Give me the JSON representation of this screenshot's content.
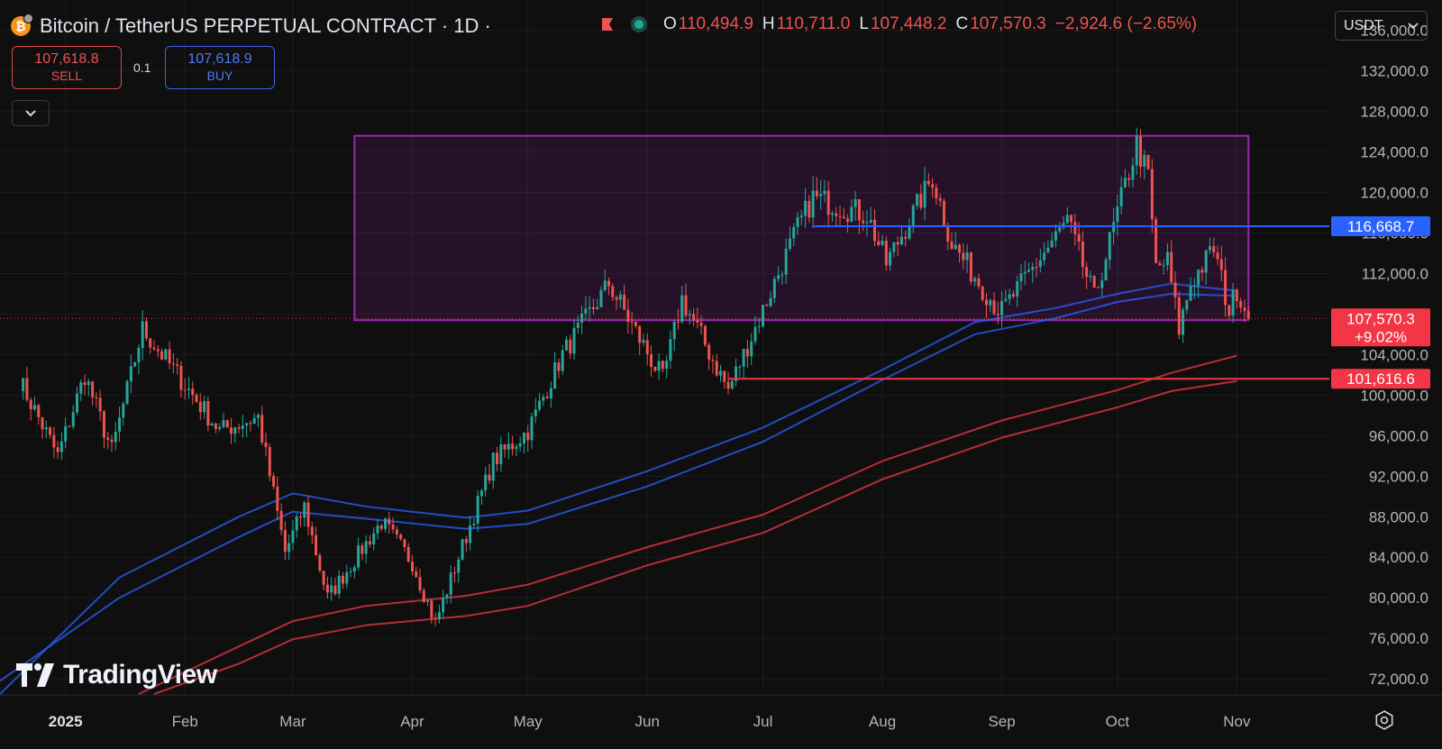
{
  "header": {
    "title": "Bitcoin / TetherUS PERPETUAL CONTRACT · 1D ·",
    "ohlc": [
      {
        "key": "O",
        "value": "110,494.9"
      },
      {
        "key": "H",
        "value": "110,711.0"
      },
      {
        "key": "L",
        "value": "107,448.2"
      },
      {
        "key": "C",
        "value": "107,570.3"
      }
    ],
    "change": "−2,924.6 (−2.65%)"
  },
  "trade": {
    "sell_price": "107,618.8",
    "sell_label": "SELL",
    "quantity": "0.1",
    "buy_price": "107,618.9",
    "buy_label": "BUY"
  },
  "currency_select": {
    "value": "USDT"
  },
  "logo_text": "TradingView",
  "colors": {
    "background": "#0f0f0f",
    "up": "#26a69a",
    "down": "#ef5350",
    "range_box": "#9c27b0",
    "blue_line": "#2962ff",
    "red_line": "#f23645"
  },
  "chart_data": {
    "type": "candlestick",
    "y_ticks": [
      "136,000.0",
      "132,000.0",
      "128,000.0",
      "124,000.0",
      "120,000.0",
      "116,000.0",
      "112,000.0",
      "108,000.0",
      "104,000.0",
      "100,000.0",
      "96,000.0",
      "92,000.0",
      "88,000.0",
      "84,000.0",
      "80,000.0",
      "76,000.0",
      "72,000.0"
    ],
    "x_ticks": [
      "2025",
      "Feb",
      "Mar",
      "Apr",
      "May",
      "Jun",
      "Jul",
      "Aug",
      "Sep",
      "Oct",
      "Nov"
    ],
    "ylim": [
      70500,
      139000
    ],
    "price_labels": [
      {
        "text": "116,668.7",
        "price": 116668.7,
        "color": "#2962ff"
      },
      {
        "text": "107,570.3",
        "sub": "+9.02%",
        "price": 107570.3,
        "color": "#f23645"
      },
      {
        "text": "101,616.6",
        "price": 101616.6,
        "color": "#f23645"
      }
    ],
    "range_box": {
      "from": "2025-03-17",
      "to": "2025-11-04",
      "top": 125600,
      "bottom": 107400
    },
    "horizontal_levels": [
      {
        "price": 116668.7,
        "from": "2025-07-14",
        "to": "2025-11-04",
        "color": "#2962ff"
      },
      {
        "price": 101616.6,
        "from": "2025-06-22",
        "to": "2025-11-04",
        "color": "#f23645"
      }
    ],
    "moving_averages": [
      {
        "color": "#2962ff",
        "points": [
          [
            "2024-12-15",
            70500
          ],
          [
            "2025-01-15",
            82000
          ],
          [
            "2025-02-15",
            88000
          ],
          [
            "2025-03-01",
            90300
          ],
          [
            "2025-03-20",
            89000
          ],
          [
            "2025-04-15",
            87900
          ],
          [
            "2025-05-01",
            88600
          ],
          [
            "2025-06-01",
            92500
          ],
          [
            "2025-07-01",
            96800
          ],
          [
            "2025-08-01",
            102500
          ],
          [
            "2025-08-25",
            107200
          ],
          [
            "2025-09-15",
            108600
          ],
          [
            "2025-10-01",
            110000
          ],
          [
            "2025-10-15",
            111000
          ],
          [
            "2025-11-01",
            110300
          ]
        ]
      },
      {
        "color": "#2962ff",
        "points": [
          [
            "2024-12-15",
            71800
          ],
          [
            "2025-01-15",
            80000
          ],
          [
            "2025-02-15",
            86000
          ],
          [
            "2025-03-01",
            88500
          ],
          [
            "2025-03-20",
            87800
          ],
          [
            "2025-04-15",
            86800
          ],
          [
            "2025-05-01",
            87300
          ],
          [
            "2025-06-01",
            91000
          ],
          [
            "2025-07-01",
            95400
          ],
          [
            "2025-08-01",
            101500
          ],
          [
            "2025-08-25",
            106000
          ],
          [
            "2025-09-15",
            107600
          ],
          [
            "2025-10-01",
            109200
          ],
          [
            "2025-10-15",
            110000
          ],
          [
            "2025-11-01",
            109800
          ]
        ]
      },
      {
        "color": "#f23645",
        "points": [
          [
            "2025-01-20",
            70500
          ],
          [
            "2025-02-15",
            75200
          ],
          [
            "2025-03-01",
            77700
          ],
          [
            "2025-03-20",
            79200
          ],
          [
            "2025-04-15",
            80200
          ],
          [
            "2025-05-01",
            81300
          ],
          [
            "2025-06-01",
            85000
          ],
          [
            "2025-07-01",
            88200
          ],
          [
            "2025-08-01",
            93500
          ],
          [
            "2025-09-01",
            97500
          ],
          [
            "2025-10-01",
            100500
          ],
          [
            "2025-10-15",
            102200
          ],
          [
            "2025-11-01",
            103900
          ]
        ]
      },
      {
        "color": "#f23645",
        "points": [
          [
            "2025-01-24",
            70500
          ],
          [
            "2025-02-15",
            73500
          ],
          [
            "2025-03-01",
            75900
          ],
          [
            "2025-03-20",
            77300
          ],
          [
            "2025-04-15",
            78200
          ],
          [
            "2025-05-01",
            79200
          ],
          [
            "2025-06-01",
            83200
          ],
          [
            "2025-07-01",
            86400
          ],
          [
            "2025-08-01",
            91700
          ],
          [
            "2025-09-01",
            95800
          ],
          [
            "2025-10-01",
            98800
          ],
          [
            "2025-10-15",
            100400
          ],
          [
            "2025-11-01",
            101400
          ]
        ]
      }
    ],
    "anchors": [
      [
        "2024-12-20",
        101500
      ],
      [
        "2024-12-30",
        94000
      ],
      [
        "2025-01-06",
        102000
      ],
      [
        "2025-01-13",
        94500
      ],
      [
        "2025-01-21",
        106500
      ],
      [
        "2025-01-31",
        101500
      ],
      [
        "2025-02-10",
        96500
      ],
      [
        "2025-02-20",
        97800
      ],
      [
        "2025-02-27",
        84500
      ],
      [
        "2025-03-04",
        89000
      ],
      [
        "2025-03-10",
        80000
      ],
      [
        "2025-03-24",
        87500
      ],
      [
        "2025-04-01",
        83500
      ],
      [
        "2025-04-07",
        77500
      ],
      [
        "2025-04-13",
        84000
      ],
      [
        "2025-04-22",
        93500
      ],
      [
        "2025-05-01",
        96500
      ],
      [
        "2025-05-10",
        104000
      ],
      [
        "2025-05-22",
        111000
      ],
      [
        "2025-06-05",
        101500
      ],
      [
        "2025-06-10",
        109500
      ],
      [
        "2025-06-22",
        100500
      ],
      [
        "2025-06-30",
        107500
      ],
      [
        "2025-07-10",
        116500
      ],
      [
        "2025-07-14",
        119500
      ],
      [
        "2025-07-28",
        117800
      ],
      [
        "2025-08-02",
        113000
      ],
      [
        "2025-08-14",
        121500
      ],
      [
        "2025-08-19",
        115000
      ],
      [
        "2025-08-31",
        108500
      ],
      [
        "2025-09-01",
        108300
      ],
      [
        "2025-09-18",
        117200
      ],
      [
        "2025-09-25",
        109500
      ],
      [
        "2025-10-01",
        118000
      ],
      [
        "2025-10-06",
        124700
      ],
      [
        "2025-10-09",
        121500
      ],
      [
        "2025-10-11",
        112500
      ],
      [
        "2025-10-14",
        113200
      ],
      [
        "2025-10-17",
        106500
      ],
      [
        "2025-10-20",
        111000
      ],
      [
        "2025-10-26",
        114500
      ],
      [
        "2025-10-30",
        108300
      ],
      [
        "2025-11-01",
        110500
      ],
      [
        "2025-11-04",
        107570
      ]
    ]
  }
}
